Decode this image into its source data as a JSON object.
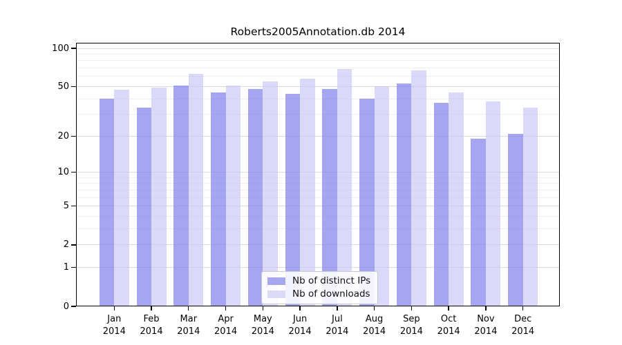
{
  "chart_data": {
    "type": "bar",
    "title": "Roberts2005Annotation.db 2014",
    "categories": [
      "Jan",
      "Feb",
      "Mar",
      "Apr",
      "May",
      "Jun",
      "Jul",
      "Aug",
      "Sep",
      "Oct",
      "Nov",
      "Dec"
    ],
    "year_label": "2014",
    "series": [
      {
        "name": "Nb of distinct IPs",
        "color": "#a7a7f0",
        "fill": "rgba(130,130,236,0.72)",
        "values": [
          40,
          34,
          51,
          45,
          48,
          44,
          48,
          40,
          53,
          37,
          19,
          21
        ]
      },
      {
        "name": "Nb of downloads",
        "color": "#dadaf7",
        "fill": "rgba(196,196,243,0.62)",
        "values": [
          47,
          49,
          63,
          51,
          55,
          58,
          69,
          50,
          67,
          45,
          38,
          34
        ]
      }
    ],
    "yscale": "log1p",
    "ylim": [
      0,
      110.5
    ],
    "yticks_major": [
      0,
      1,
      2,
      5,
      10,
      20,
      50,
      100
    ],
    "yticks_minor": [
      3,
      4,
      6,
      7,
      8,
      9,
      30,
      40,
      60,
      70,
      80,
      90
    ],
    "grid": true,
    "legend_position": "lower center"
  },
  "colors": {
    "background": "#ffffff",
    "axis": "#000000",
    "grid_major": "#dcdcdc",
    "grid_minor": "#f1eeef",
    "bar_ips": "#a7a7f0",
    "bar_downloads": "#dadaf7"
  }
}
